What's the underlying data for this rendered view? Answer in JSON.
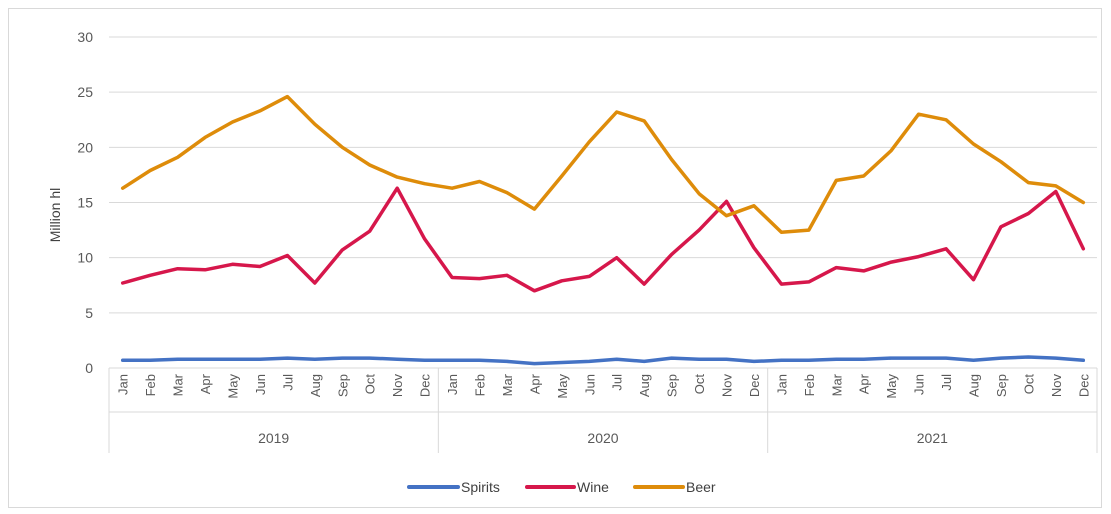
{
  "chart_data": {
    "type": "line",
    "ylabel": "Million hl",
    "ylim": [
      0,
      30
    ],
    "yticks": [
      0,
      5,
      10,
      15,
      20,
      25,
      30
    ],
    "grid": true,
    "legend_position": "bottom",
    "month_labels": [
      "Jan",
      "Feb",
      "Mar",
      "Apr",
      "May",
      "Jun",
      "Jul",
      "Aug",
      "Sep",
      "Oct",
      "Nov",
      "Dec"
    ],
    "years": [
      "2019",
      "2020",
      "2021"
    ],
    "series": [
      {
        "name": "Spirits",
        "color": "#4472C4",
        "values": [
          0.7,
          0.7,
          0.8,
          0.8,
          0.8,
          0.8,
          0.9,
          0.8,
          0.9,
          0.9,
          0.8,
          0.7,
          0.7,
          0.7,
          0.6,
          0.4,
          0.5,
          0.6,
          0.8,
          0.6,
          0.9,
          0.8,
          0.8,
          0.6,
          0.7,
          0.7,
          0.8,
          0.8,
          0.9,
          0.9,
          0.9,
          0.7,
          0.9,
          1.0,
          0.9,
          0.7
        ]
      },
      {
        "name": "Wine",
        "color": "#D6174B",
        "values": [
          7.7,
          8.4,
          9.0,
          8.9,
          9.4,
          9.2,
          10.2,
          7.7,
          10.7,
          12.4,
          16.3,
          11.7,
          8.2,
          8.1,
          8.4,
          7.0,
          7.9,
          8.3,
          10.0,
          7.6,
          10.3,
          12.5,
          15.1,
          10.9,
          7.6,
          7.8,
          9.1,
          8.8,
          9.6,
          10.1,
          10.8,
          8.0,
          12.8,
          14.0,
          16.0,
          10.8
        ]
      },
      {
        "name": "Beer",
        "color": "#DE8C0A",
        "values": [
          16.3,
          17.9,
          19.1,
          20.9,
          22.3,
          23.3,
          24.6,
          22.1,
          20.0,
          18.4,
          17.3,
          16.7,
          16.3,
          16.9,
          15.9,
          14.4,
          17.4,
          20.5,
          23.2,
          22.4,
          18.9,
          15.8,
          13.8,
          14.7,
          12.3,
          12.5,
          17.0,
          17.4,
          19.7,
          23.0,
          22.5,
          20.3,
          18.7,
          16.8,
          16.5,
          15.0
        ]
      }
    ]
  }
}
